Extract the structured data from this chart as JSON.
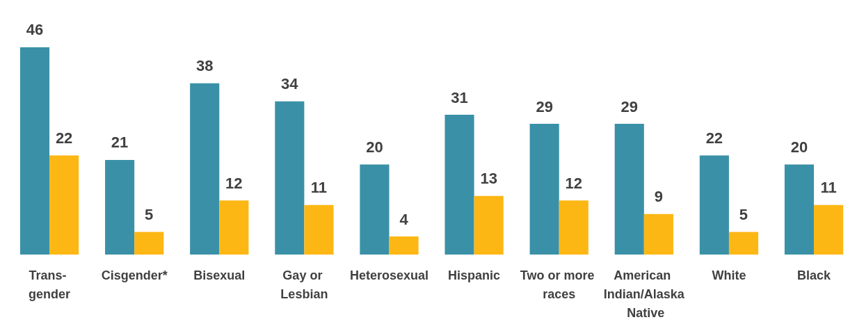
{
  "chart_data": {
    "type": "bar",
    "categories": [
      "Trans- gender",
      "Cisgender*",
      "Bisexual",
      "Gay or Lesbian",
      "Heterosexual",
      "Hispanic",
      "Two or more races",
      "American Indian/Alaska Native",
      "White",
      "Black"
    ],
    "series": [
      {
        "color": "#3a91a7",
        "values": [
          46,
          21,
          38,
          34,
          20,
          31,
          29,
          29,
          22,
          20
        ]
      },
      {
        "color": "#fdb714",
        "values": [
          22,
          5,
          12,
          11,
          4,
          13,
          12,
          9,
          5,
          11
        ]
      }
    ],
    "data_labels": true
  }
}
